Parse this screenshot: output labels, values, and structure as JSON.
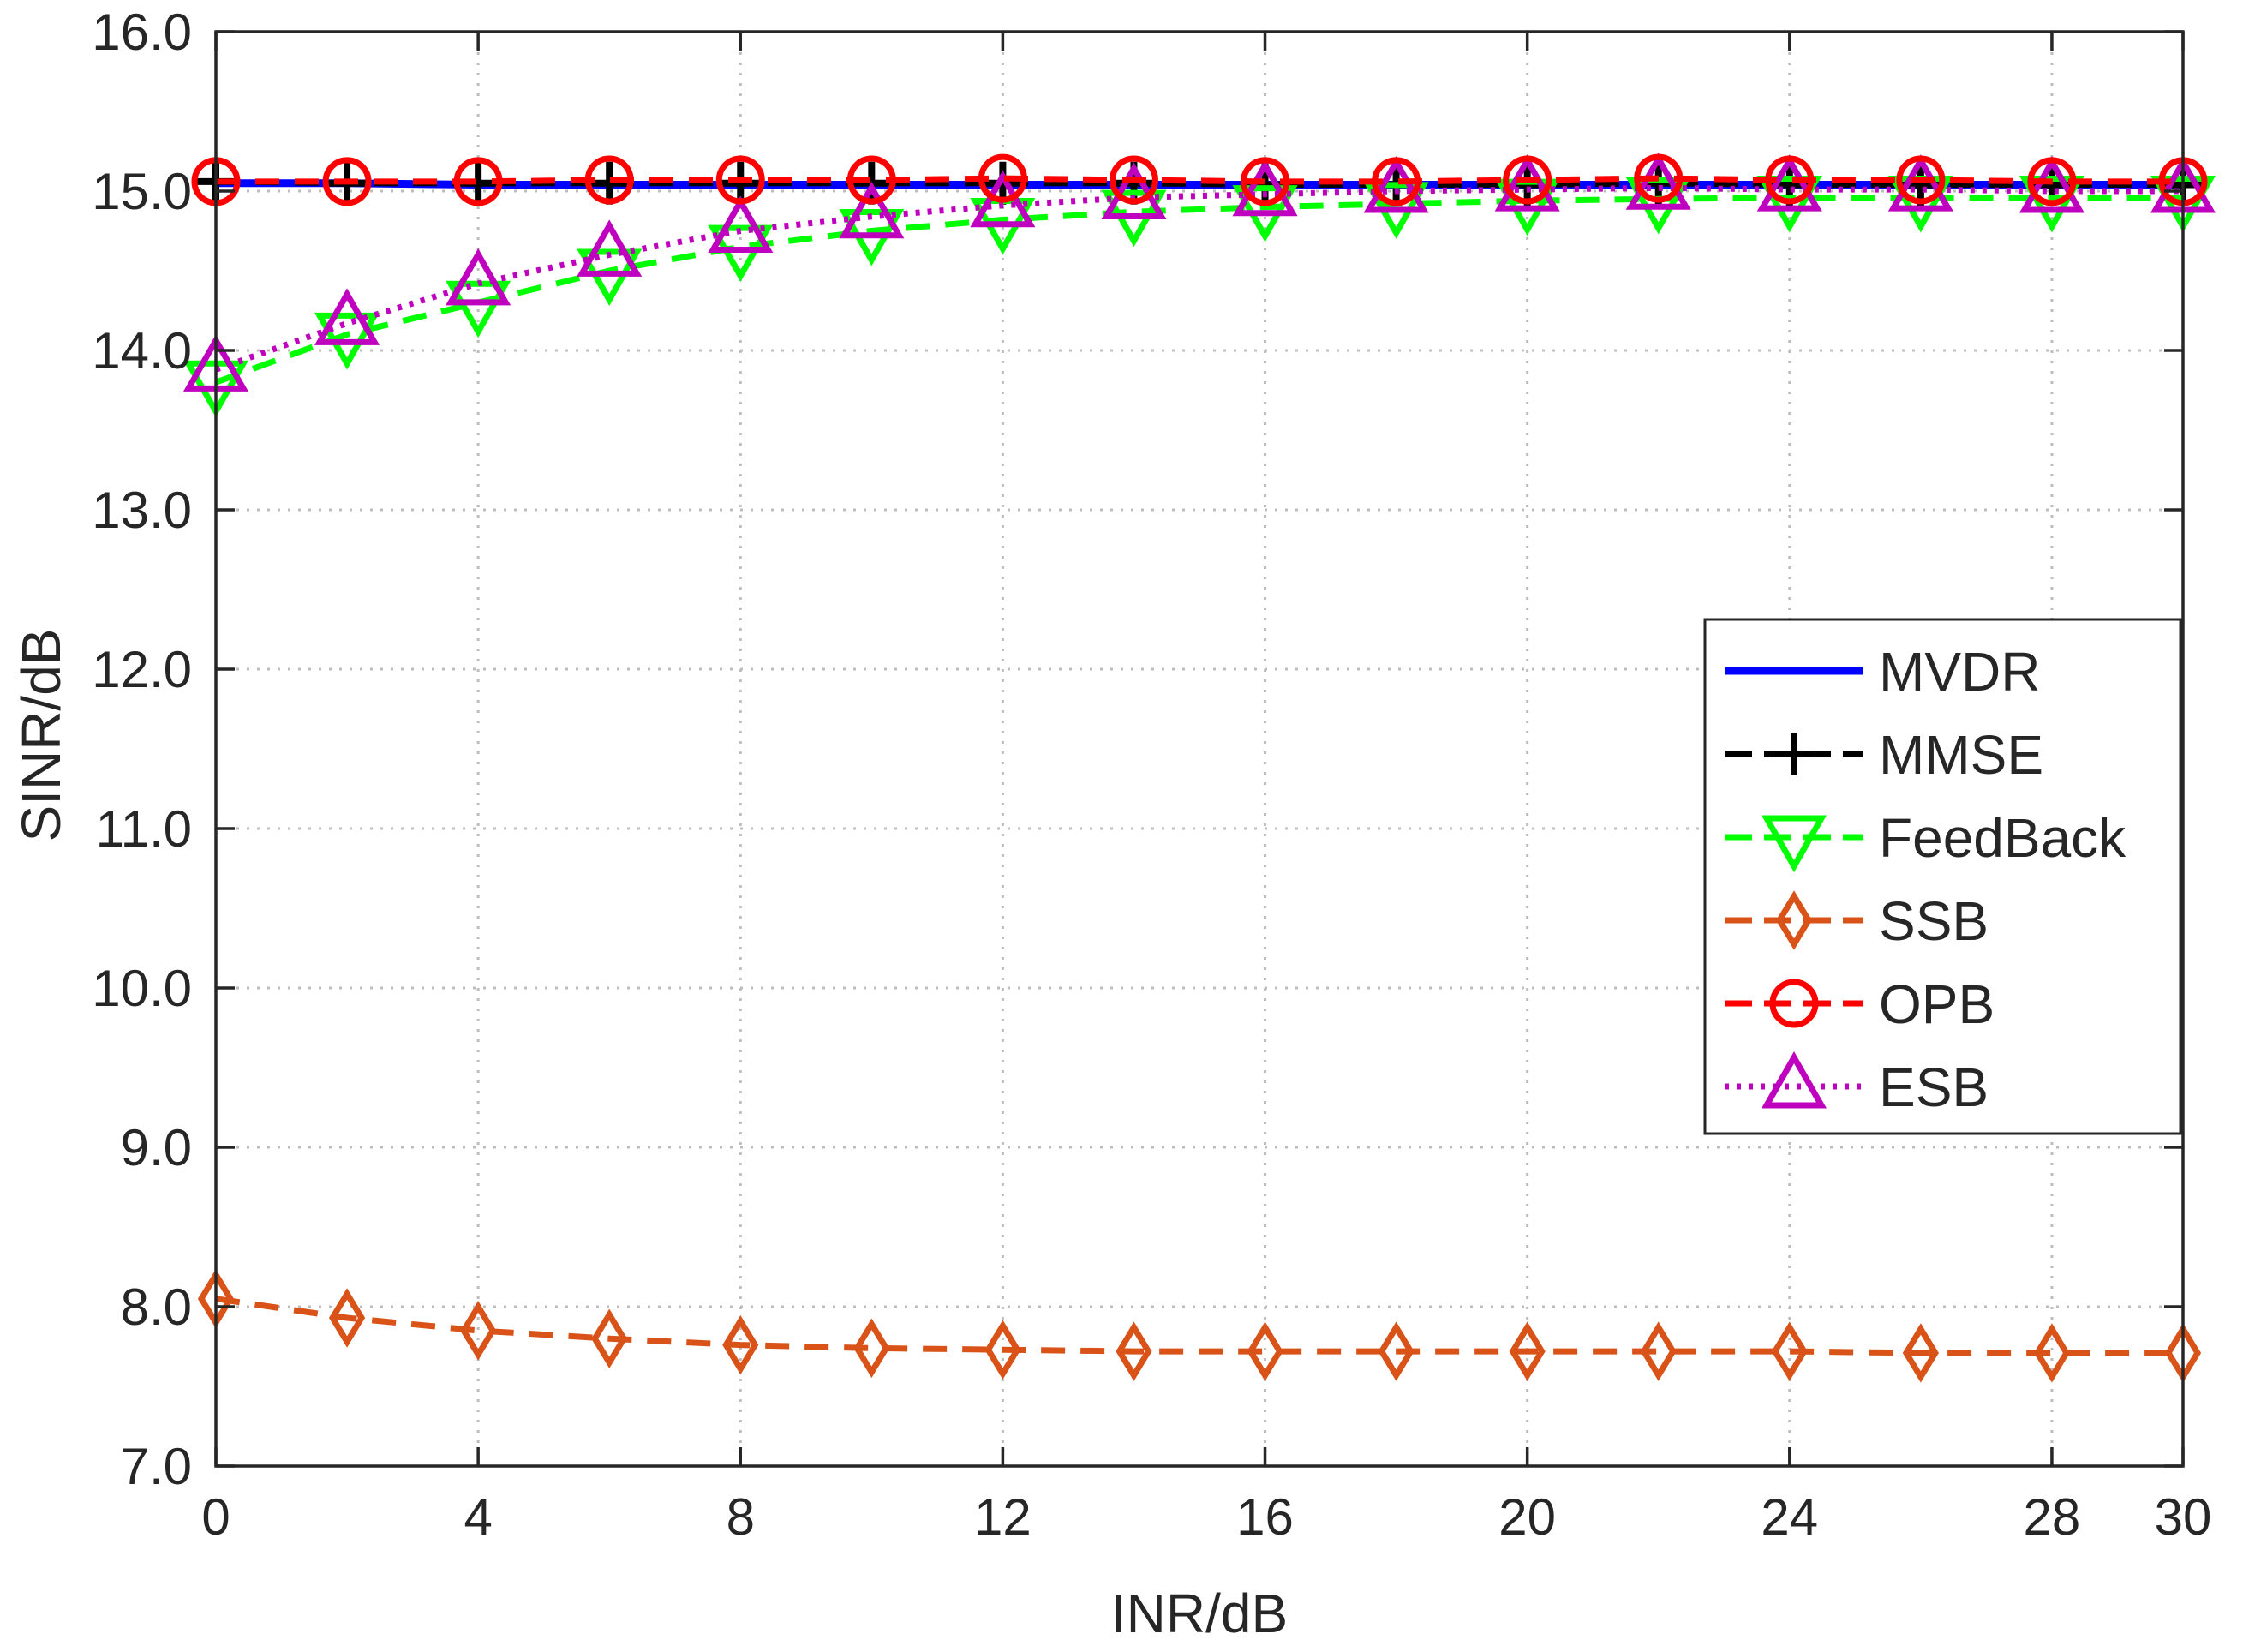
{
  "chart_data": {
    "type": "line",
    "title": "",
    "xlabel": "INR/dB",
    "ylabel": "SINR/dB",
    "xlim": [
      0,
      30
    ],
    "ylim": [
      7.0,
      16.0
    ],
    "grid": true,
    "legend_position": "right",
    "x": [
      0,
      2,
      4,
      6,
      8,
      10,
      12,
      14,
      16,
      18,
      20,
      22,
      24,
      26,
      28,
      30
    ],
    "x_tick_labels": [
      "0",
      "4",
      "8",
      "12",
      "16",
      "20",
      "24",
      "28",
      "30"
    ],
    "x_tick_values": [
      0,
      4,
      8,
      12,
      16,
      20,
      24,
      28,
      30
    ],
    "y_tick_labels": [
      "7.0",
      "8.0",
      "9.0",
      "10.0",
      "11.0",
      "12.0",
      "13.0",
      "14.0",
      "15.0",
      "16.0"
    ],
    "y_tick_values": [
      7,
      8,
      9,
      10,
      11,
      12,
      13,
      14,
      15,
      16
    ],
    "series": [
      {
        "name": "MVDR",
        "color": "#0000ff",
        "line_style": "solid",
        "marker": "none",
        "values": [
          15.05,
          15.05,
          15.04,
          15.04,
          15.04,
          15.04,
          15.04,
          15.04,
          15.04,
          15.04,
          15.04,
          15.04,
          15.04,
          15.04,
          15.04,
          15.04
        ]
      },
      {
        "name": "MMSE",
        "color": "#000000",
        "line_style": "dashed",
        "marker": "plus",
        "values": [
          15.06,
          15.05,
          15.05,
          15.05,
          15.05,
          15.05,
          15.05,
          15.05,
          15.04,
          15.04,
          15.04,
          15.05,
          15.04,
          15.04,
          15.04,
          15.04
        ]
      },
      {
        "name": "FeedBack",
        "color": "#00ff00",
        "line_style": "dashed",
        "marker": "triangle-down",
        "values": [
          13.8,
          14.1,
          14.3,
          14.5,
          14.65,
          14.75,
          14.82,
          14.87,
          14.9,
          14.92,
          14.94,
          14.95,
          14.96,
          14.96,
          14.96,
          14.96
        ]
      },
      {
        "name": "SSB",
        "color": "#d95319",
        "line_style": "dashed",
        "marker": "diamond",
        "values": [
          8.05,
          7.93,
          7.85,
          7.8,
          7.76,
          7.74,
          7.73,
          7.72,
          7.72,
          7.72,
          7.72,
          7.72,
          7.72,
          7.71,
          7.71,
          7.71
        ]
      },
      {
        "name": "OPB",
        "color": "#ff0000",
        "line_style": "dashed",
        "marker": "circle",
        "values": [
          15.06,
          15.06,
          15.06,
          15.07,
          15.07,
          15.07,
          15.08,
          15.07,
          15.06,
          15.06,
          15.07,
          15.08,
          15.07,
          15.07,
          15.06,
          15.06
        ]
      },
      {
        "name": "ESB",
        "color": "#bf00bf",
        "line_style": "dotted",
        "marker": "triangle-up",
        "values": [
          13.88,
          14.17,
          14.42,
          14.6,
          14.75,
          14.84,
          14.91,
          14.96,
          14.98,
          15.0,
          15.01,
          15.02,
          15.01,
          15.01,
          15.0,
          15.0
        ]
      }
    ]
  }
}
